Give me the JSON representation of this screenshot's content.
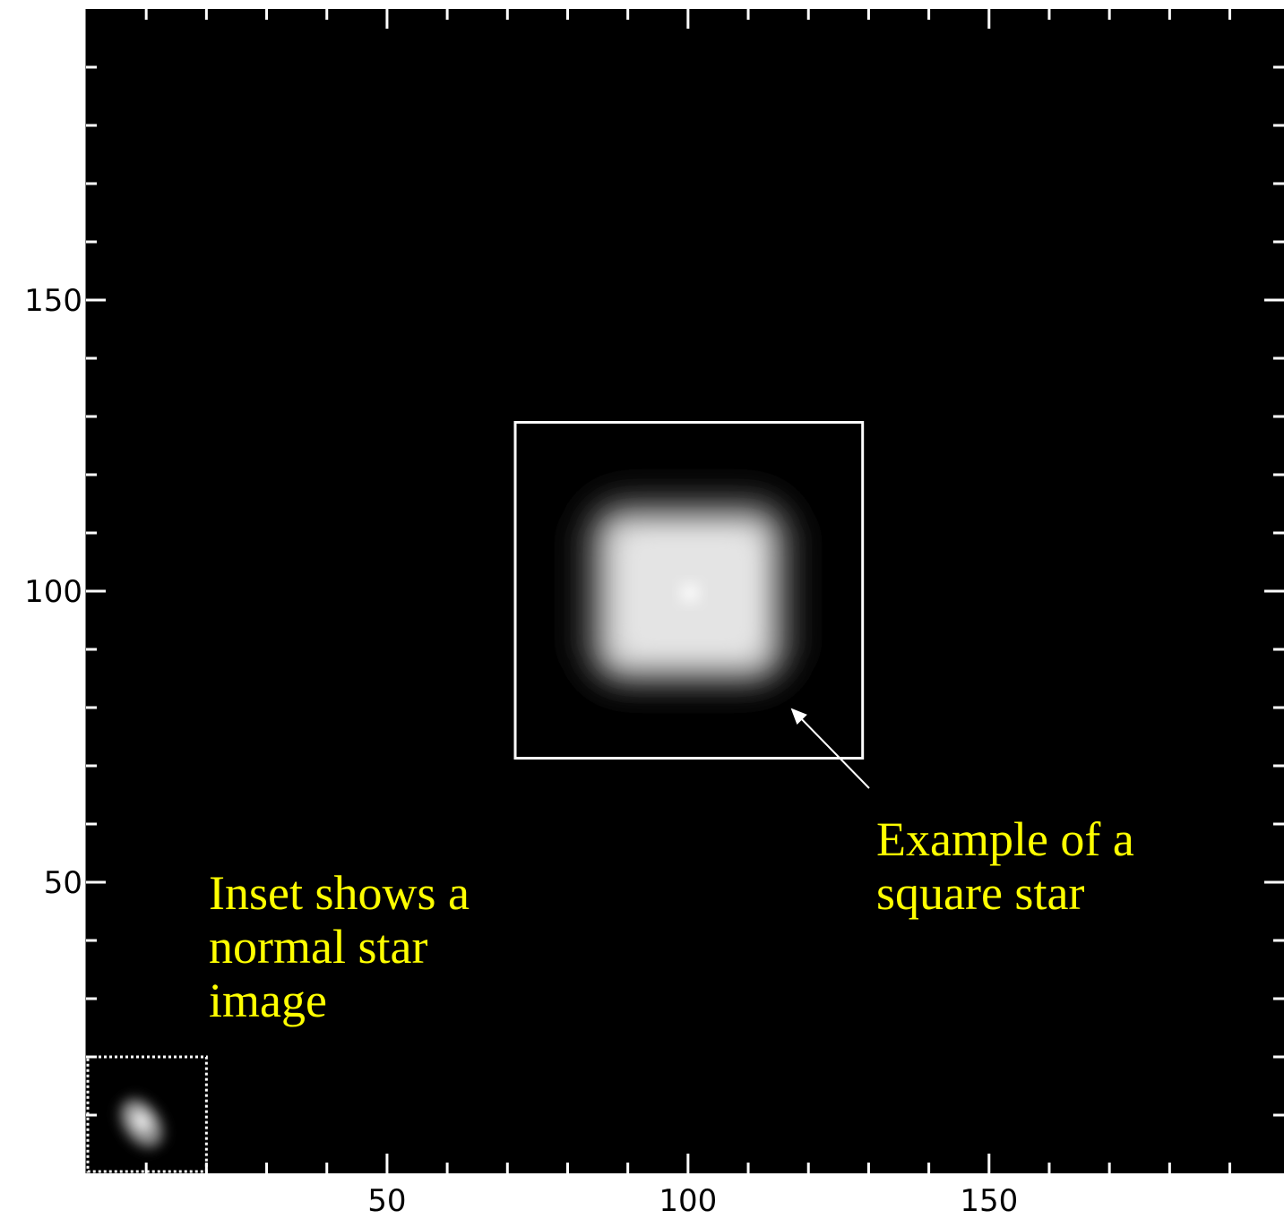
{
  "chart_data": {
    "type": "image",
    "xlim": [
      0,
      199
    ],
    "ylim": [
      0,
      200
    ],
    "xticks": [
      50,
      100,
      150
    ],
    "yticks": [
      50,
      100,
      150
    ],
    "xminorticks": [
      10,
      20,
      30,
      40,
      60,
      70,
      80,
      90,
      110,
      120,
      130,
      140,
      160,
      170,
      180,
      190
    ],
    "yminorticks": [
      10,
      20,
      30,
      40,
      60,
      70,
      80,
      90,
      110,
      120,
      130,
      140,
      160,
      170,
      180,
      190
    ],
    "highlight_box": {
      "x": [
        71,
        129
      ],
      "y": [
        71,
        129
      ],
      "color": "#ffffff"
    },
    "inset_box": {
      "x": [
        0,
        20
      ],
      "y": [
        0,
        20
      ],
      "color": "#ffffff"
    },
    "annotations": [
      {
        "lines": [
          "Example of a",
          "square star"
        ],
        "color": "#ffff00"
      },
      {
        "lines": [
          "Inset shows a",
          "normal star",
          "image"
        ],
        "color": "#ffff00"
      }
    ]
  }
}
